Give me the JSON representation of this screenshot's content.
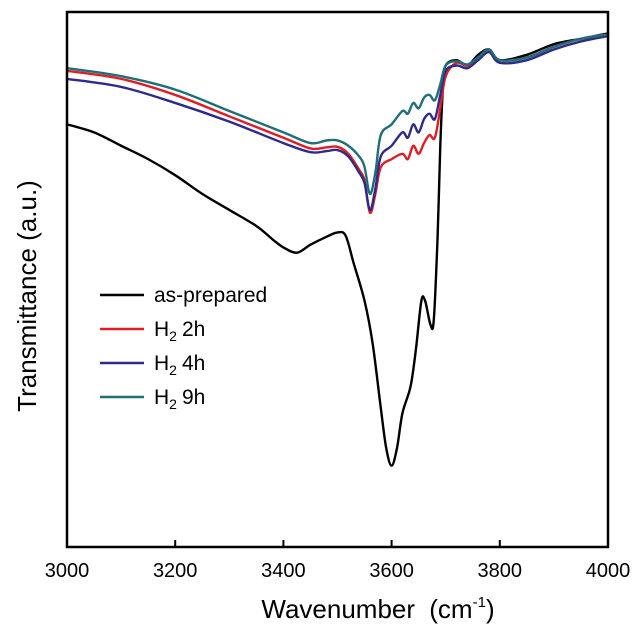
{
  "chart_data": {
    "type": "line",
    "title": "",
    "xlabel": "Wavenumber",
    "xlabel_unit_prefix": "(cm",
    "xlabel_unit_sup": "-1",
    "xlabel_unit_suffix": ")",
    "ylabel": "Transmittance (a.u.)",
    "xlim": [
      3000,
      4000
    ],
    "ylim": [
      0,
      100
    ],
    "x_ticks": [
      3000,
      3200,
      3400,
      3600,
      3800,
      4000
    ],
    "y_ticks": [],
    "grid": false,
    "legend_position": "left-middle",
    "series": [
      {
        "name": "as-prepared",
        "legend_main": "as-prepared",
        "legend_sub": "",
        "legend_tail": "",
        "color": "#000000",
        "points": [
          [
            3000,
            79
          ],
          [
            3050,
            77.5
          ],
          [
            3100,
            75
          ],
          [
            3150,
            72.5
          ],
          [
            3200,
            69.5
          ],
          [
            3250,
            66
          ],
          [
            3300,
            63
          ],
          [
            3350,
            60
          ],
          [
            3380,
            57.5
          ],
          [
            3400,
            56
          ],
          [
            3425,
            55
          ],
          [
            3450,
            56.5
          ],
          [
            3480,
            58
          ],
          [
            3500,
            58.8
          ],
          [
            3515,
            58.2
          ],
          [
            3530,
            53
          ],
          [
            3550,
            46
          ],
          [
            3565,
            38
          ],
          [
            3580,
            26
          ],
          [
            3590,
            18.5
          ],
          [
            3600,
            15.2
          ],
          [
            3610,
            18.5
          ],
          [
            3620,
            25
          ],
          [
            3635,
            30
          ],
          [
            3645,
            37
          ],
          [
            3655,
            46
          ],
          [
            3662,
            46
          ],
          [
            3672,
            41.5
          ],
          [
            3678,
            42.5
          ],
          [
            3685,
            58
          ],
          [
            3690,
            75
          ],
          [
            3695,
            86
          ],
          [
            3700,
            90
          ],
          [
            3720,
            91
          ],
          [
            3740,
            90
          ],
          [
            3760,
            92
          ],
          [
            3780,
            93
          ],
          [
            3800,
            91
          ],
          [
            3850,
            92
          ],
          [
            3900,
            94
          ],
          [
            3950,
            95
          ],
          [
            4000,
            96
          ]
        ]
      },
      {
        "name": "H2 2h",
        "legend_main": "H",
        "legend_sub": "2",
        "legend_tail": "2h",
        "color": "#e01d24",
        "points": [
          [
            3000,
            89
          ],
          [
            3100,
            87.5
          ],
          [
            3200,
            84.5
          ],
          [
            3300,
            80.5
          ],
          [
            3400,
            76.5
          ],
          [
            3450,
            74.5
          ],
          [
            3480,
            74.7
          ],
          [
            3500,
            74.8
          ],
          [
            3520,
            73.5
          ],
          [
            3540,
            70.5
          ],
          [
            3550,
            68.5
          ],
          [
            3560,
            62.5
          ],
          [
            3570,
            66
          ],
          [
            3580,
            71
          ],
          [
            3600,
            72.5
          ],
          [
            3620,
            73.5
          ],
          [
            3630,
            72.5
          ],
          [
            3640,
            75
          ],
          [
            3650,
            73.5
          ],
          [
            3660,
            75.5
          ],
          [
            3670,
            77
          ],
          [
            3680,
            76.5
          ],
          [
            3690,
            82
          ],
          [
            3700,
            88
          ],
          [
            3720,
            90.5
          ],
          [
            3740,
            90
          ],
          [
            3760,
            91.5
          ],
          [
            3780,
            93
          ],
          [
            3800,
            91
          ],
          [
            3850,
            91.5
          ],
          [
            3900,
            93.5
          ],
          [
            3950,
            95
          ],
          [
            4000,
            95.8
          ]
        ]
      },
      {
        "name": "H2 4h",
        "legend_main": "H",
        "legend_sub": "2",
        "legend_tail": "4h",
        "color": "#2e2a8a",
        "points": [
          [
            3000,
            87.5
          ],
          [
            3100,
            86
          ],
          [
            3200,
            83
          ],
          [
            3300,
            79.5
          ],
          [
            3400,
            75.5
          ],
          [
            3450,
            73.8
          ],
          [
            3480,
            74
          ],
          [
            3500,
            74.2
          ],
          [
            3520,
            73
          ],
          [
            3540,
            70
          ],
          [
            3550,
            68
          ],
          [
            3560,
            63
          ],
          [
            3570,
            67
          ],
          [
            3580,
            73
          ],
          [
            3600,
            75
          ],
          [
            3620,
            77.5
          ],
          [
            3630,
            76.5
          ],
          [
            3640,
            79
          ],
          [
            3650,
            77.5
          ],
          [
            3660,
            80
          ],
          [
            3670,
            81
          ],
          [
            3680,
            80
          ],
          [
            3690,
            84.5
          ],
          [
            3700,
            89
          ],
          [
            3720,
            90
          ],
          [
            3740,
            89.5
          ],
          [
            3760,
            91
          ],
          [
            3780,
            92.5
          ],
          [
            3800,
            90.5
          ],
          [
            3850,
            91
          ],
          [
            3900,
            93
          ],
          [
            3950,
            94.5
          ],
          [
            4000,
            95.5
          ]
        ]
      },
      {
        "name": "H2 9h",
        "legend_main": "H",
        "legend_sub": "2",
        "legend_tail": "9h",
        "color": "#1e6f76",
        "points": [
          [
            3000,
            89.5
          ],
          [
            3100,
            88
          ],
          [
            3200,
            85.5
          ],
          [
            3300,
            81.5
          ],
          [
            3400,
            77.5
          ],
          [
            3450,
            75.5
          ],
          [
            3480,
            76
          ],
          [
            3500,
            76
          ],
          [
            3520,
            75
          ],
          [
            3540,
            73
          ],
          [
            3550,
            71
          ],
          [
            3560,
            66
          ],
          [
            3570,
            70
          ],
          [
            3580,
            77
          ],
          [
            3600,
            79
          ],
          [
            3620,
            81.5
          ],
          [
            3630,
            81
          ],
          [
            3640,
            83
          ],
          [
            3650,
            82
          ],
          [
            3660,
            84
          ],
          [
            3670,
            84.5
          ],
          [
            3680,
            83.5
          ],
          [
            3690,
            86.5
          ],
          [
            3700,
            90
          ],
          [
            3720,
            90.8
          ],
          [
            3740,
            90.2
          ],
          [
            3760,
            91.5
          ],
          [
            3780,
            93
          ],
          [
            3800,
            91
          ],
          [
            3850,
            91.5
          ],
          [
            3900,
            93.5
          ],
          [
            3950,
            95
          ],
          [
            4000,
            95.8
          ]
        ]
      }
    ]
  }
}
